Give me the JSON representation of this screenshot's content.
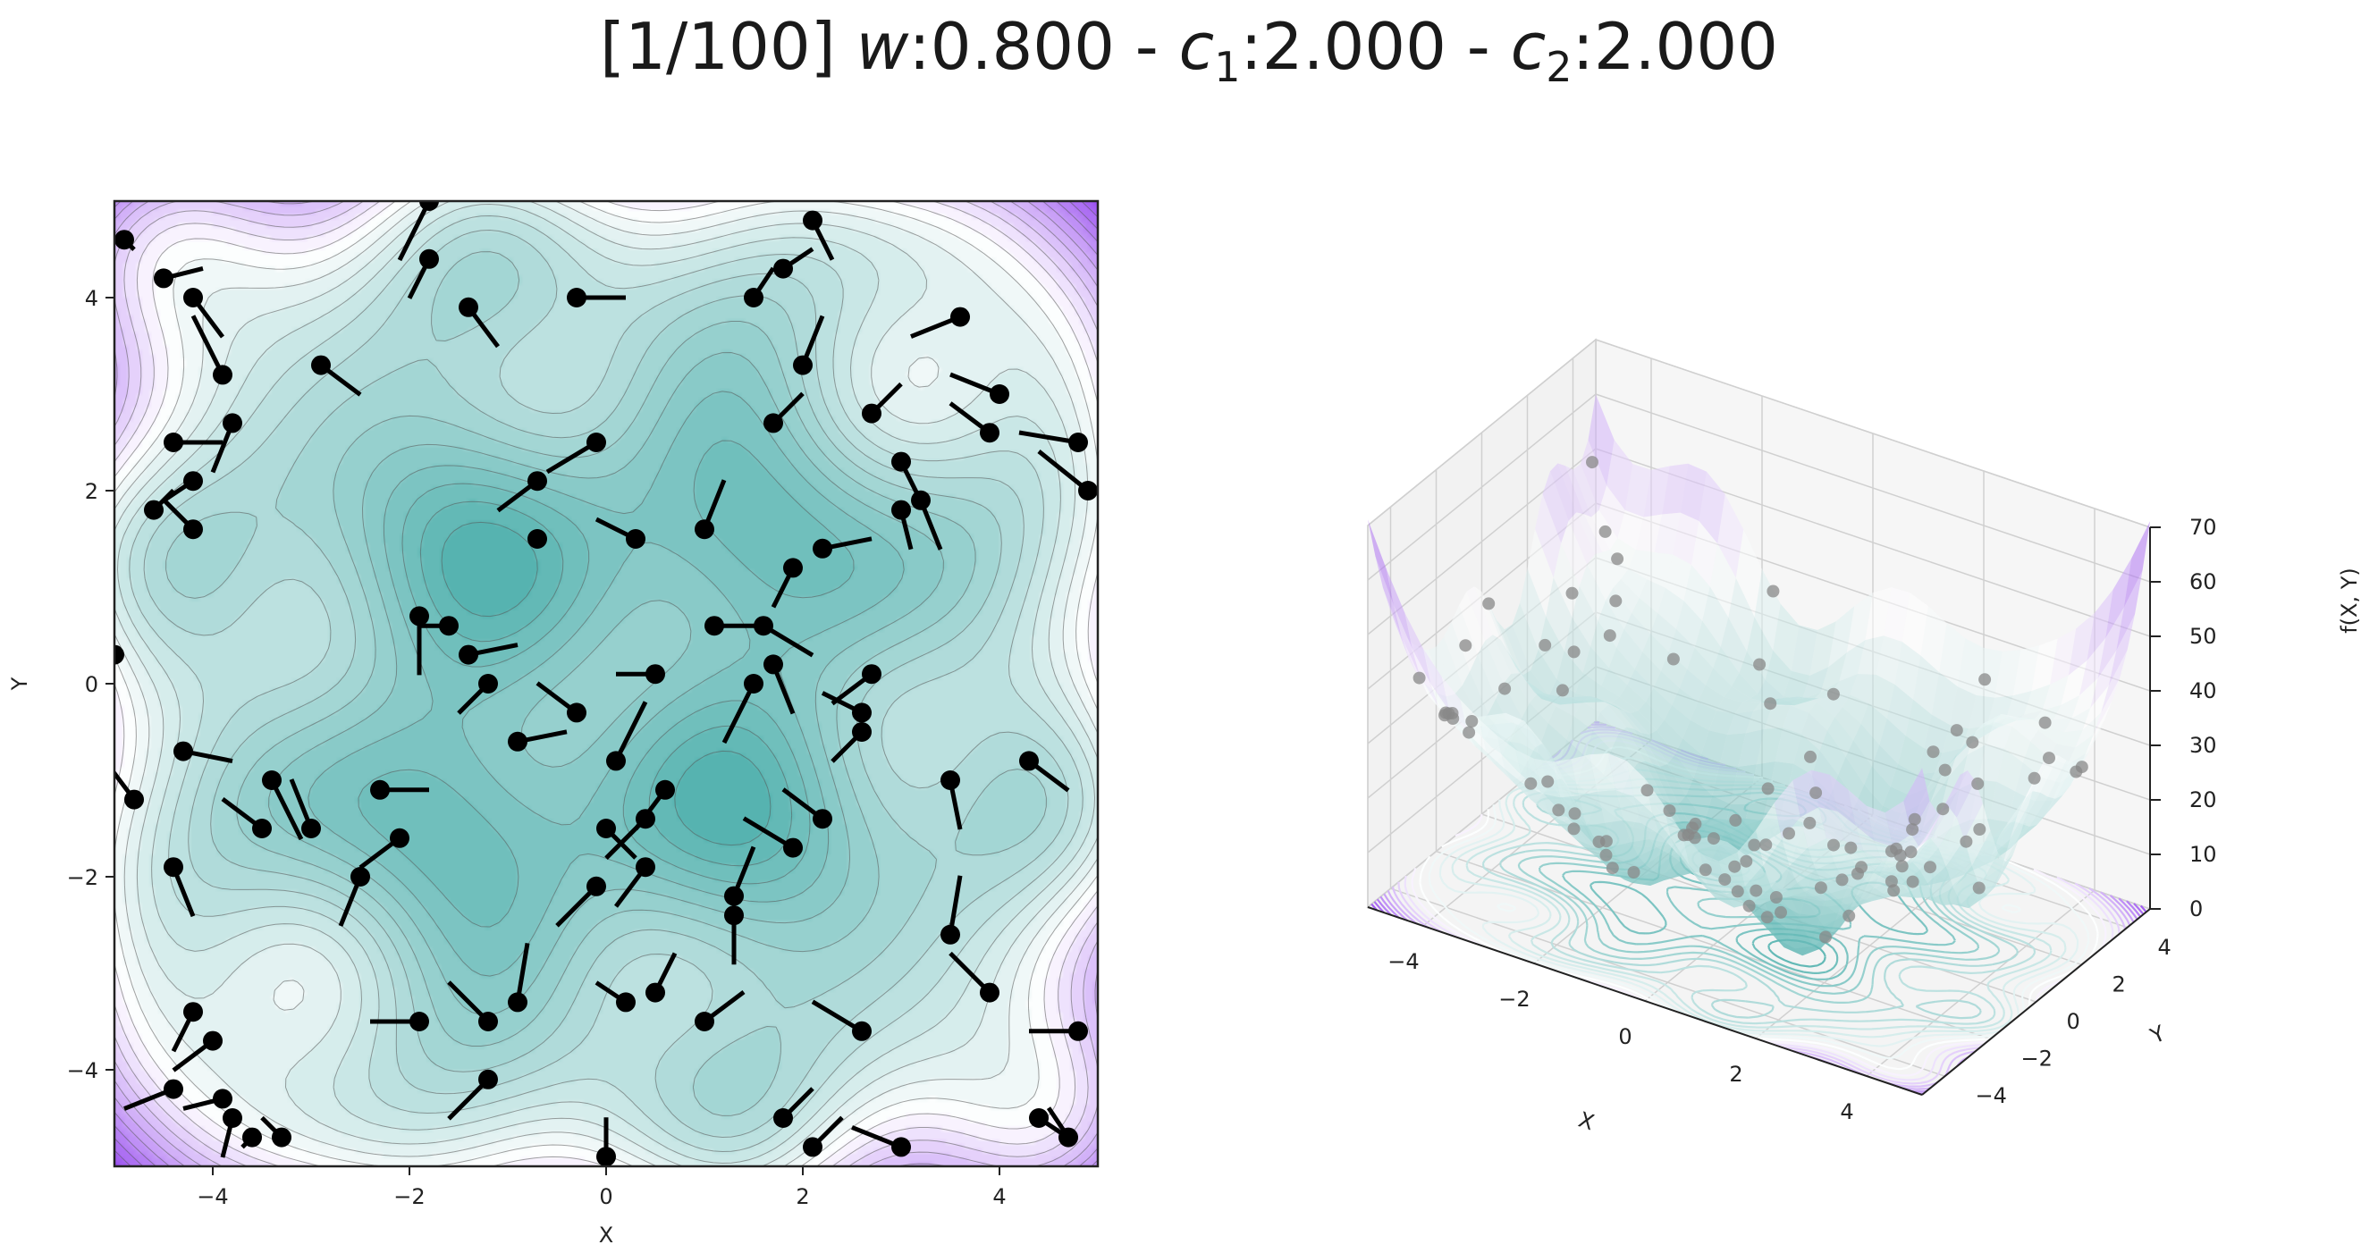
{
  "title": {
    "iter": "[1/100]",
    "w_sym": "w",
    "w_val": ":0.800",
    "sep1": " - ",
    "c1_sym": "c",
    "c1_sub": "1",
    "c1_val": ":2.000",
    "sep2": " - ",
    "c2_sym": "c",
    "c2_sub": "2",
    "c2_val": ":2.000"
  },
  "colors": {
    "low": "#56b3b0",
    "mid": "#ffffff",
    "high": "#9a4ff0"
  },
  "chart_data": [
    {
      "type": "contour",
      "xlabel": "X",
      "ylabel": "Y",
      "xlim": [
        -5,
        5
      ],
      "ylim": [
        -5,
        5
      ],
      "xticks": [
        -4,
        -2,
        0,
        2,
        4
      ],
      "yticks": [
        -4,
        -2,
        0,
        2,
        4
      ],
      "xticklabels": [
        "−4",
        "−2",
        "0",
        "2",
        "4"
      ],
      "yticklabels": [
        "−4",
        "−2",
        "0",
        "2",
        "4"
      ],
      "particles": [
        {
          "x": -4.9,
          "y": 4.6,
          "vx": 0.1,
          "vy": -0.1
        },
        {
          "x": -4.5,
          "y": 4.2,
          "vx": 0.4,
          "vy": 0.1
        },
        {
          "x": -4.2,
          "y": 4.0,
          "vx": 0.3,
          "vy": -0.4
        },
        {
          "x": -3.9,
          "y": 3.2,
          "vx": -0.3,
          "vy": 0.6
        },
        {
          "x": -3.8,
          "y": 2.7,
          "vx": -0.2,
          "vy": -0.5
        },
        {
          "x": -2.9,
          "y": 3.3,
          "vx": 0.4,
          "vy": -0.3
        },
        {
          "x": -4.4,
          "y": 2.5,
          "vx": 0.5,
          "vy": 0.0
        },
        {
          "x": -4.2,
          "y": 2.1,
          "vx": -0.3,
          "vy": -0.2
        },
        {
          "x": -4.2,
          "y": 1.6,
          "vx": -0.3,
          "vy": 0.3
        },
        {
          "x": -1.8,
          "y": 5.0,
          "vx": -0.3,
          "vy": -0.6
        },
        {
          "x": -1.8,
          "y": 4.4,
          "vx": -0.2,
          "vy": -0.4
        },
        {
          "x": -1.4,
          "y": 3.9,
          "vx": 0.3,
          "vy": -0.4
        },
        {
          "x": -0.3,
          "y": 4.0,
          "vx": 0.5,
          "vy": 0.0
        },
        {
          "x": 1.5,
          "y": 4.0,
          "vx": 0.2,
          "vy": 0.3
        },
        {
          "x": 1.8,
          "y": 4.3,
          "vx": 0.3,
          "vy": 0.2
        },
        {
          "x": 2.1,
          "y": 4.8,
          "vx": 0.2,
          "vy": -0.4
        },
        {
          "x": 3.6,
          "y": 3.8,
          "vx": -0.5,
          "vy": -0.2
        },
        {
          "x": 2.0,
          "y": 3.3,
          "vx": 0.2,
          "vy": 0.5
        },
        {
          "x": 1.7,
          "y": 2.7,
          "vx": 0.3,
          "vy": 0.3
        },
        {
          "x": 2.7,
          "y": 2.8,
          "vx": 0.3,
          "vy": 0.3
        },
        {
          "x": 4.0,
          "y": 3.0,
          "vx": -0.5,
          "vy": 0.2
        },
        {
          "x": 3.9,
          "y": 2.6,
          "vx": -0.4,
          "vy": 0.3
        },
        {
          "x": 4.8,
          "y": 2.5,
          "vx": -0.6,
          "vy": 0.1
        },
        {
          "x": 4.9,
          "y": 2.0,
          "vx": -0.5,
          "vy": 0.4
        },
        {
          "x": 3.0,
          "y": 2.3,
          "vx": 0.2,
          "vy": -0.4
        },
        {
          "x": 3.2,
          "y": 1.9,
          "vx": 0.2,
          "vy": -0.5
        },
        {
          "x": 3.0,
          "y": 1.8,
          "vx": 0.1,
          "vy": -0.4
        },
        {
          "x": -0.1,
          "y": 2.5,
          "vx": -0.5,
          "vy": -0.3
        },
        {
          "x": -0.7,
          "y": 2.1,
          "vx": -0.4,
          "vy": -0.3
        },
        {
          "x": -0.7,
          "y": 1.5,
          "vx": 0.0,
          "vy": 0.0
        },
        {
          "x": 0.3,
          "y": 1.5,
          "vx": -0.4,
          "vy": 0.2
        },
        {
          "x": 1.0,
          "y": 1.6,
          "vx": 0.2,
          "vy": 0.5
        },
        {
          "x": 2.2,
          "y": 1.4,
          "vx": 0.5,
          "vy": 0.1
        },
        {
          "x": 1.9,
          "y": 1.2,
          "vx": -0.2,
          "vy": -0.4
        },
        {
          "x": -1.9,
          "y": 0.7,
          "vx": 0.0,
          "vy": -0.6
        },
        {
          "x": -1.6,
          "y": 0.6,
          "vx": -0.3,
          "vy": 0.0
        },
        {
          "x": -1.4,
          "y": 0.3,
          "vx": 0.5,
          "vy": 0.1
        },
        {
          "x": 1.6,
          "y": 0.6,
          "vx": 0.5,
          "vy": -0.3
        },
        {
          "x": 1.1,
          "y": 0.6,
          "vx": 0.5,
          "vy": 0.0
        },
        {
          "x": -1.2,
          "y": 0.0,
          "vx": -0.3,
          "vy": -0.3
        },
        {
          "x": 0.5,
          "y": 0.1,
          "vx": -0.4,
          "vy": 0.0
        },
        {
          "x": 1.7,
          "y": 0.2,
          "vx": 0.2,
          "vy": -0.5
        },
        {
          "x": 2.7,
          "y": 0.1,
          "vx": -0.4,
          "vy": -0.3
        },
        {
          "x": -5.0,
          "y": 0.3,
          "vx": 0.0,
          "vy": 0.0
        },
        {
          "x": -0.3,
          "y": -0.3,
          "vx": -0.4,
          "vy": 0.3
        },
        {
          "x": -0.9,
          "y": -0.6,
          "vx": 0.5,
          "vy": 0.1
        },
        {
          "x": 1.5,
          "y": 0.0,
          "vx": -0.3,
          "vy": -0.6
        },
        {
          "x": 2.6,
          "y": -0.3,
          "vx": -0.4,
          "vy": 0.2
        },
        {
          "x": 2.6,
          "y": -0.5,
          "vx": -0.3,
          "vy": -0.3
        },
        {
          "x": 0.1,
          "y": -0.8,
          "vx": 0.3,
          "vy": 0.6
        },
        {
          "x": -4.3,
          "y": -0.7,
          "vx": 0.5,
          "vy": -0.1
        },
        {
          "x": -3.4,
          "y": -1.0,
          "vx": 0.3,
          "vy": -0.6
        },
        {
          "x": 4.3,
          "y": -0.8,
          "vx": 0.4,
          "vy": -0.3
        },
        {
          "x": 3.5,
          "y": -1.0,
          "vx": 0.1,
          "vy": -0.5
        },
        {
          "x": -4.8,
          "y": -1.2,
          "vx": -0.3,
          "vy": 0.4
        },
        {
          "x": -2.3,
          "y": -1.1,
          "vx": 0.5,
          "vy": 0.0
        },
        {
          "x": 0.6,
          "y": -1.1,
          "vx": -0.3,
          "vy": -0.4
        },
        {
          "x": 2.2,
          "y": -1.4,
          "vx": -0.4,
          "vy": 0.3
        },
        {
          "x": -3.5,
          "y": -1.5,
          "vx": -0.4,
          "vy": 0.3
        },
        {
          "x": -3.0,
          "y": -1.5,
          "vx": -0.2,
          "vy": 0.5
        },
        {
          "x": 0.0,
          "y": -1.5,
          "vx": 0.3,
          "vy": -0.3
        },
        {
          "x": 0.4,
          "y": -1.4,
          "vx": -0.4,
          "vy": -0.4
        },
        {
          "x": 1.9,
          "y": -1.7,
          "vx": -0.5,
          "vy": 0.3
        },
        {
          "x": -2.1,
          "y": -1.6,
          "vx": -0.4,
          "vy": -0.3
        },
        {
          "x": -4.4,
          "y": -1.9,
          "vx": 0.2,
          "vy": -0.5
        },
        {
          "x": -2.5,
          "y": -2.0,
          "vx": -0.2,
          "vy": -0.5
        },
        {
          "x": 0.4,
          "y": -1.9,
          "vx": -0.3,
          "vy": -0.4
        },
        {
          "x": 1.3,
          "y": -2.2,
          "vx": 0.2,
          "vy": 0.5
        },
        {
          "x": -0.1,
          "y": -2.1,
          "vx": -0.4,
          "vy": -0.4
        },
        {
          "x": 1.3,
          "y": -2.4,
          "vx": 0.0,
          "vy": -0.5
        },
        {
          "x": 3.5,
          "y": -2.6,
          "vx": 0.1,
          "vy": 0.6
        },
        {
          "x": 3.9,
          "y": -3.2,
          "vx": -0.4,
          "vy": 0.4
        },
        {
          "x": -0.9,
          "y": -3.3,
          "vx": 0.1,
          "vy": 0.6
        },
        {
          "x": 0.5,
          "y": -3.2,
          "vx": 0.2,
          "vy": 0.4
        },
        {
          "x": 0.2,
          "y": -3.3,
          "vx": -0.3,
          "vy": 0.2
        },
        {
          "x": 1.0,
          "y": -3.5,
          "vx": 0.4,
          "vy": 0.3
        },
        {
          "x": -1.2,
          "y": -3.5,
          "vx": -0.4,
          "vy": 0.4
        },
        {
          "x": -1.9,
          "y": -3.5,
          "vx": -0.5,
          "vy": 0.0
        },
        {
          "x": 2.6,
          "y": -3.6,
          "vx": -0.5,
          "vy": 0.3
        },
        {
          "x": 4.8,
          "y": -3.6,
          "vx": -0.5,
          "vy": 0.0
        },
        {
          "x": -4.2,
          "y": -3.4,
          "vx": -0.2,
          "vy": -0.4
        },
        {
          "x": -4.0,
          "y": -3.7,
          "vx": -0.4,
          "vy": -0.3
        },
        {
          "x": -1.2,
          "y": -4.1,
          "vx": -0.4,
          "vy": -0.4
        },
        {
          "x": -4.4,
          "y": -4.2,
          "vx": -0.5,
          "vy": -0.2
        },
        {
          "x": -3.9,
          "y": -4.3,
          "vx": -0.4,
          "vy": -0.1
        },
        {
          "x": -3.8,
          "y": -4.5,
          "vx": -0.1,
          "vy": -0.4
        },
        {
          "x": -3.6,
          "y": -4.7,
          "vx": -0.1,
          "vy": -0.1
        },
        {
          "x": -3.3,
          "y": -4.7,
          "vx": -0.2,
          "vy": 0.2
        },
        {
          "x": 1.8,
          "y": -4.5,
          "vx": 0.3,
          "vy": 0.3
        },
        {
          "x": 2.1,
          "y": -4.8,
          "vx": 0.3,
          "vy": 0.3
        },
        {
          "x": 3.0,
          "y": -4.8,
          "vx": -0.5,
          "vy": 0.2
        },
        {
          "x": 4.4,
          "y": -4.5,
          "vx": 0.3,
          "vy": -0.2
        },
        {
          "x": 4.7,
          "y": -4.7,
          "vx": -0.2,
          "vy": 0.3
        },
        {
          "x": 0.0,
          "y": -4.9,
          "vx": 0.0,
          "vy": 0.4
        },
        {
          "x": -4.6,
          "y": 1.8,
          "vx": 0.2,
          "vy": 0.2
        }
      ]
    },
    {
      "type": "surface3d",
      "xlabel": "X",
      "ylabel": "Y",
      "zlabel": "f(X, Y)",
      "xlim": [
        -5,
        5
      ],
      "ylim": [
        -5,
        5
      ],
      "zlim": [
        0,
        70
      ],
      "xticklabels": [
        "−4",
        "−2",
        "0",
        "2",
        "4"
      ],
      "yticklabels": [
        "−4",
        "−2",
        "0",
        "2",
        "4"
      ],
      "zticklabels": [
        "0",
        "10",
        "20",
        "30",
        "40",
        "50",
        "60",
        "70"
      ]
    }
  ]
}
